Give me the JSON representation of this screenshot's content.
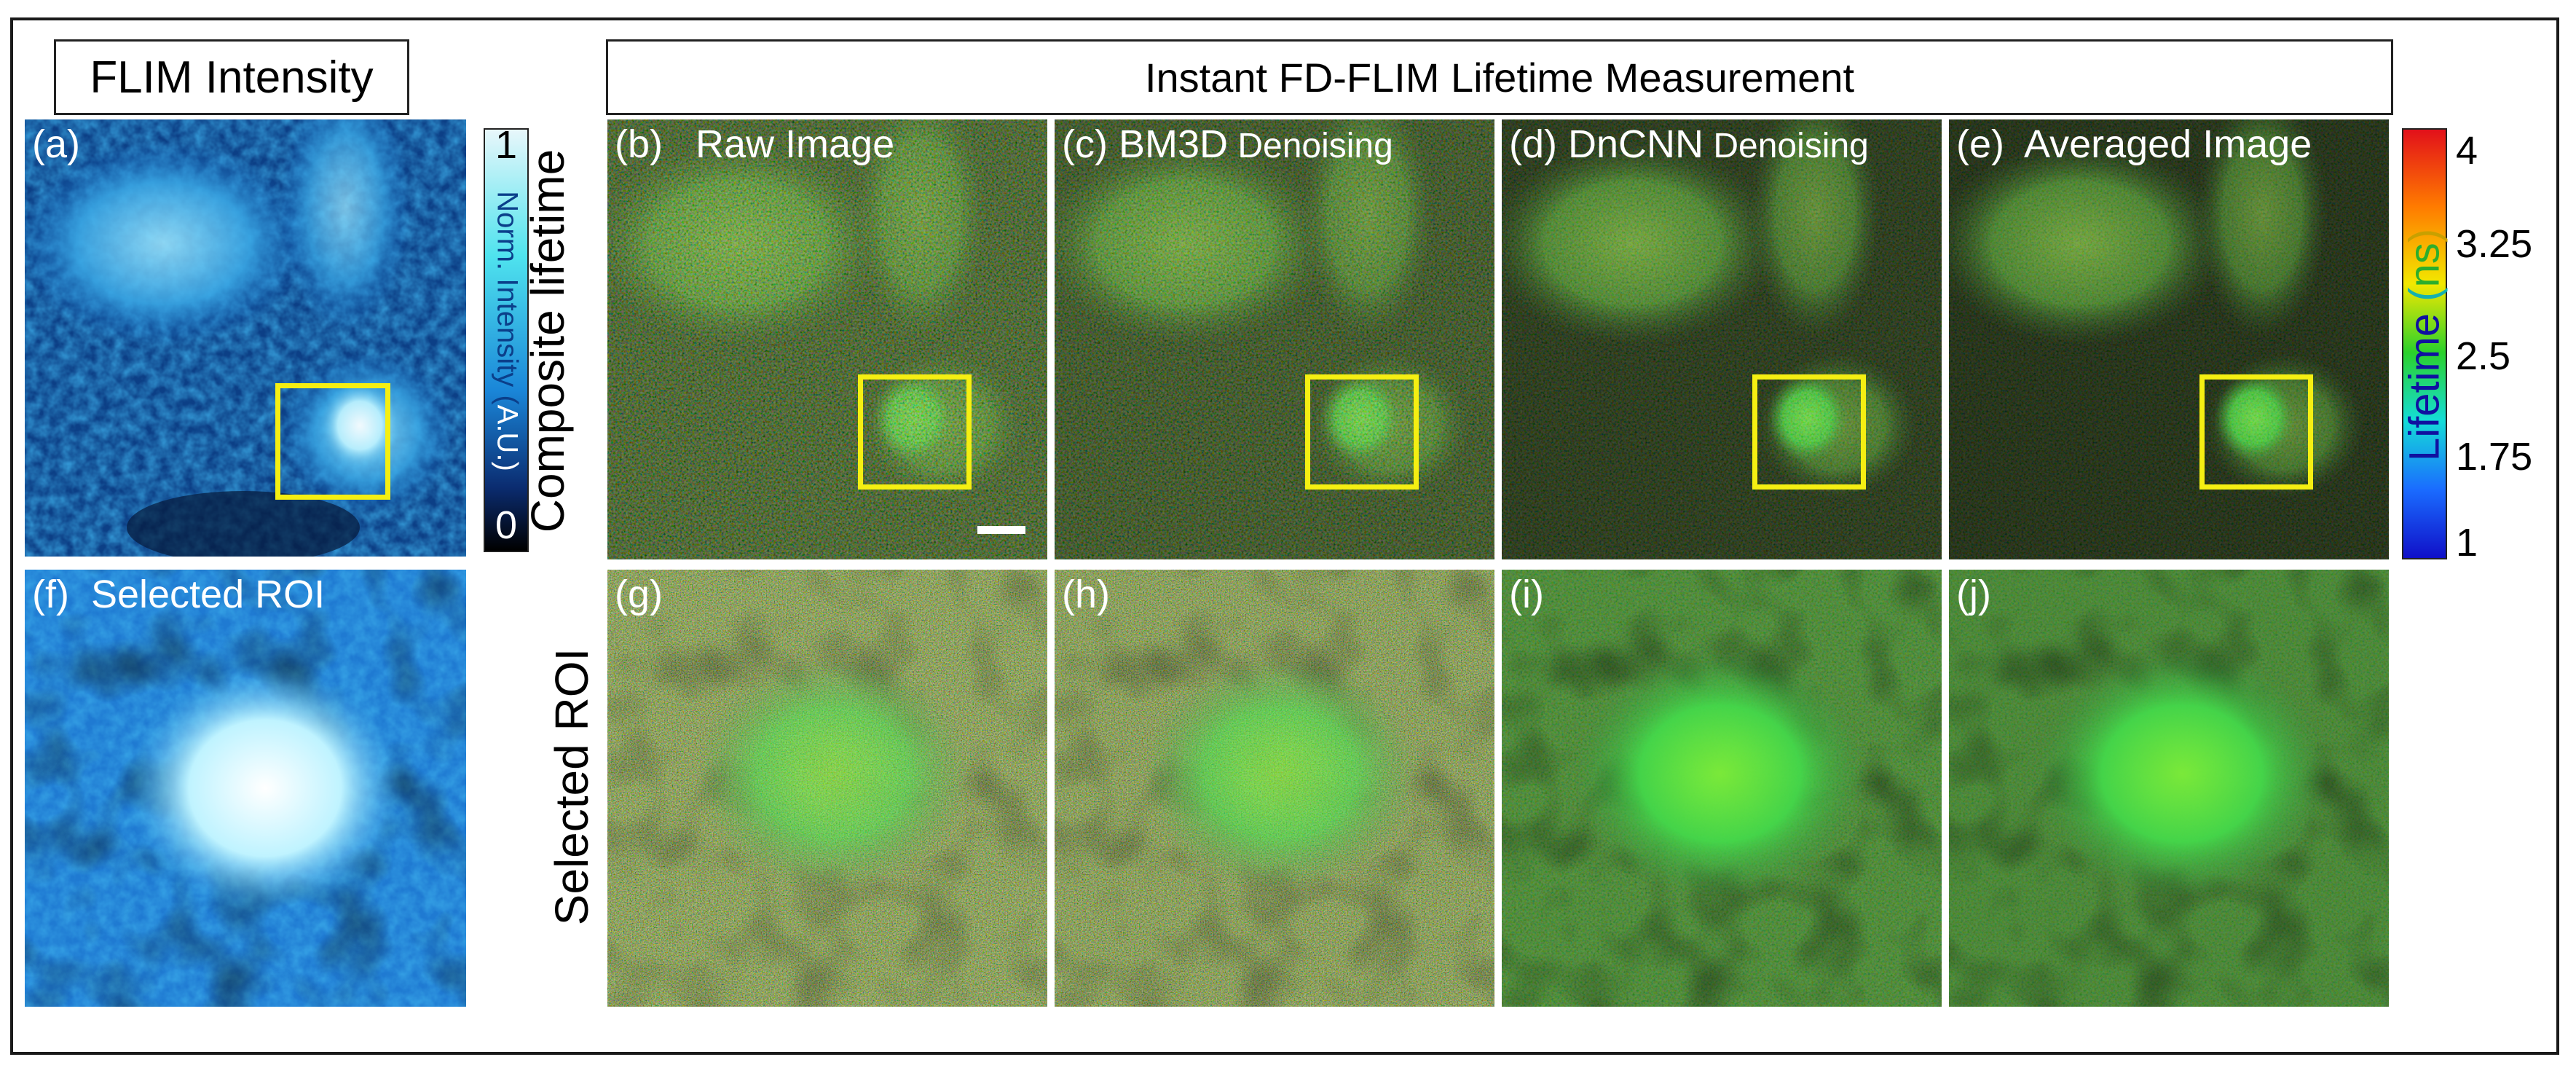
{
  "titles": {
    "intensity": "FLIM Intensity",
    "lifetime": "Instant FD-FLIM Lifetime Measurement"
  },
  "row_labels": {
    "top": "Composite lifetime",
    "bottom": "Selected ROI"
  },
  "panels": {
    "a": "(a)",
    "b": "(b)   Raw Image",
    "c": "(c) BM3D",
    "c_suffix": " Denoising",
    "d": "(d) DnCNN",
    "d_suffix": " Denoising",
    "e": "(e)  Averaged Image",
    "f": "(f)  Selected ROI",
    "g": "(g)",
    "h": "(h)",
    "i": "(i)",
    "j": "(j)"
  },
  "intensity_colorbar": {
    "max": "1",
    "min": "0",
    "label_part1": "Norm. Intensity (",
    "label_part2": "A.U.",
    "label_part3": ")",
    "colors": [
      "#e8f7fb",
      "#4fe3ee",
      "#1a86d8",
      "#0b2c70",
      "#000000"
    ]
  },
  "lifetime_colorbar": {
    "ticks": [
      "4",
      "3.25",
      "2.5",
      "1.75",
      "1"
    ],
    "label_part1": "Lifetime",
    "label_part2": " (",
    "label_part3": "ns",
    "label_part4": ")",
    "colors": [
      "#e2101a",
      "#ff7b00",
      "#f2e800",
      "#2bd12b",
      "#14dcd8",
      "#1a6cff",
      "#1010c8"
    ]
  }
}
